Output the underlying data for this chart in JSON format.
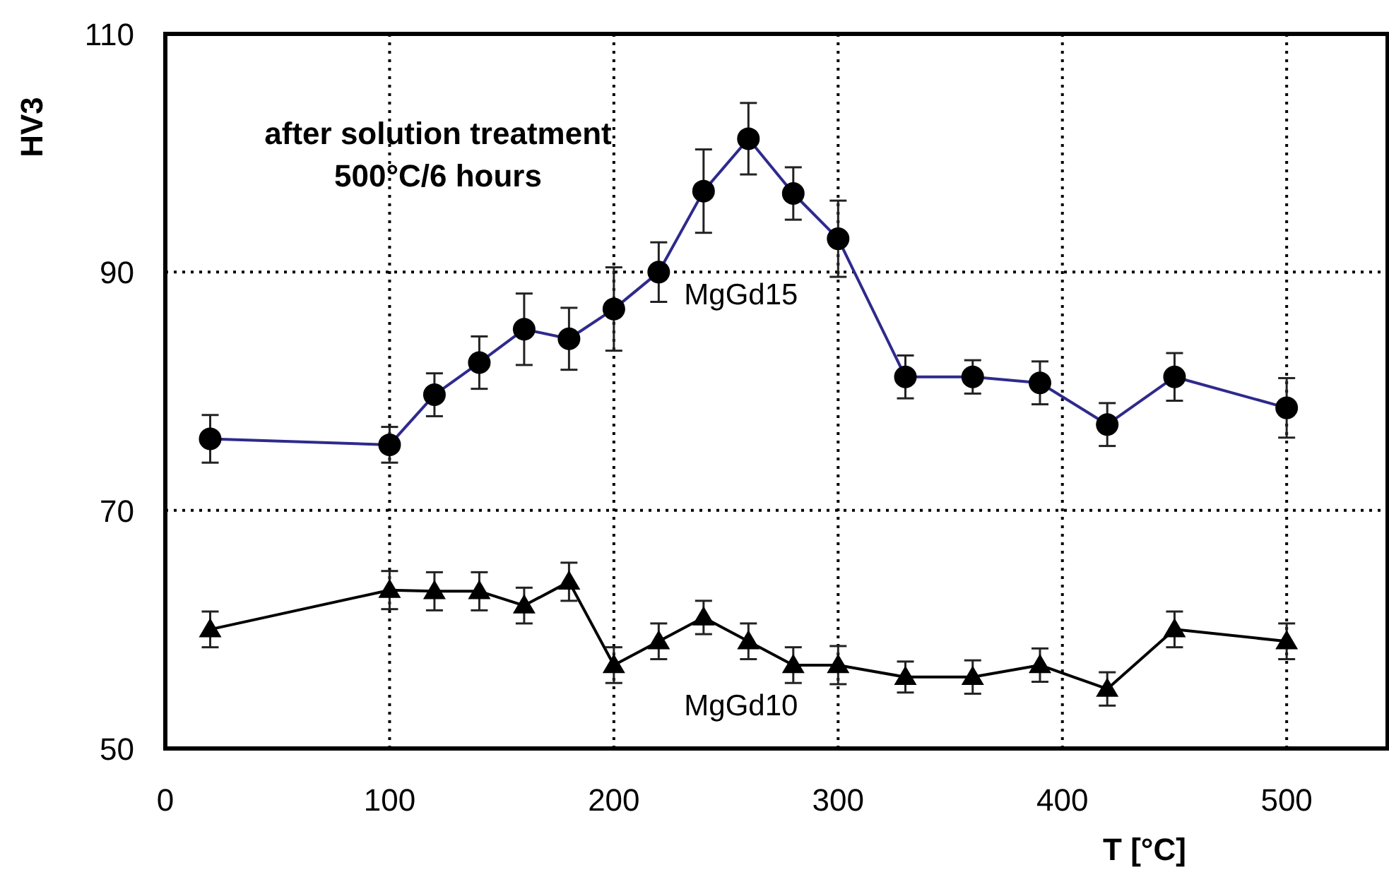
{
  "chart_data": {
    "type": "line",
    "xlabel": "T [°C]",
    "ylabel": "HV3",
    "annotations": [
      "after solution treatment",
      "500°C/6 hours"
    ],
    "x": [
      20,
      100,
      120,
      140,
      160,
      180,
      200,
      220,
      240,
      260,
      280,
      300,
      330,
      360,
      390,
      420,
      450,
      500
    ],
    "xlim": [
      0,
      545
    ],
    "xticks": [
      0,
      100,
      200,
      300,
      400,
      500
    ],
    "ylim": [
      50,
      110
    ],
    "yticks": [
      50,
      70,
      90,
      110
    ],
    "grid": true,
    "line_style": "solid",
    "series": [
      {
        "name": "MgGd15",
        "color": "#2e2a8c",
        "marker": "circle",
        "values": [
          76,
          75.5,
          79.7,
          82.4,
          85.2,
          84.4,
          86.9,
          90,
          96.8,
          101.2,
          96.6,
          92.8,
          81.2,
          81.2,
          80.7,
          77.2,
          81.2,
          78.6
        ],
        "errors": [
          2,
          1.5,
          1.8,
          2.2,
          3,
          2.6,
          3.5,
          2.5,
          3.5,
          3,
          2.2,
          3.2,
          1.8,
          1.4,
          1.8,
          1.8,
          2,
          2.5
        ]
      },
      {
        "name": "MgGd10",
        "color": "#000000",
        "marker": "triangle",
        "values": [
          60,
          63.3,
          63.2,
          63.2,
          62,
          64,
          57,
          59,
          61,
          59,
          57,
          57,
          56,
          56,
          57,
          55,
          60,
          59
        ],
        "errors": [
          1.5,
          1.6,
          1.6,
          1.6,
          1.5,
          1.6,
          1.5,
          1.5,
          1.4,
          1.5,
          1.5,
          1.6,
          1.3,
          1.4,
          1.4,
          1.4,
          1.5,
          1.5
        ]
      }
    ]
  }
}
